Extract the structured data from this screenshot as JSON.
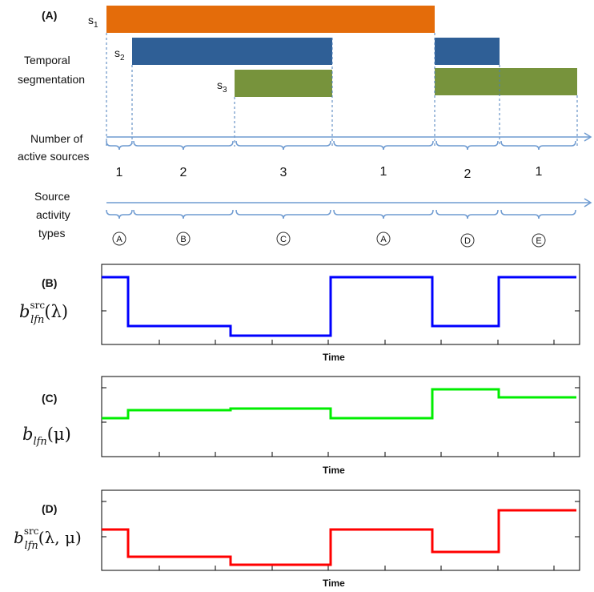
{
  "panel_a": {
    "label": "(A)",
    "sources": [
      {
        "name": "s",
        "sub": "1",
        "color": "#e46c0a"
      },
      {
        "name": "s",
        "sub": "2",
        "color": "#2f5f96"
      },
      {
        "name": "s",
        "sub": "3",
        "color": "#77933c"
      }
    ],
    "temporal_label_lines": [
      "Temporal",
      "segmentation"
    ],
    "active_label_lines": [
      "Number of",
      "active sources"
    ],
    "active_counts": [
      "1",
      "2",
      "3",
      "1",
      "2",
      "1"
    ],
    "activity_label_lines": [
      "Source",
      "activity",
      "types"
    ],
    "activity_types": [
      "A",
      "B",
      "C",
      "A",
      "D",
      "E"
    ],
    "arrow_color": "#6f9bd1",
    "dash_color": "#4a7ebb"
  },
  "panel_b": {
    "label": "(B)",
    "ylabel_base": "b",
    "ylabel_sup": "src",
    "ylabel_sub": "lfn",
    "ylabel_arg": "(λ)",
    "xlabel": "Time",
    "color": "#0000ff"
  },
  "panel_c": {
    "label": "(C)",
    "ylabel_base": "b",
    "ylabel_sub": "lfn",
    "ylabel_arg": "(μ)",
    "xlabel": "Time",
    "color": "#00ee00"
  },
  "panel_d": {
    "label": "(D)",
    "ylabel_base": "b",
    "ylabel_sup": "src",
    "ylabel_sub": "lfn",
    "ylabel_arg": "(λ, μ)",
    "xlabel": "Time",
    "color": "#ff0000"
  }
}
